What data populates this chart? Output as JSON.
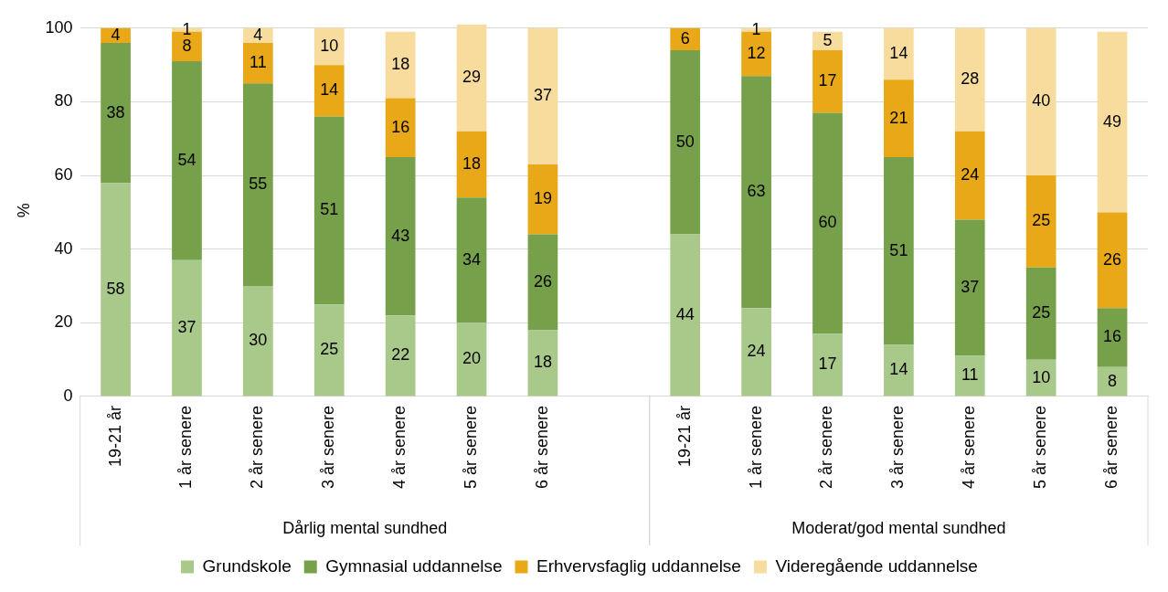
{
  "chart_data": {
    "type": "bar",
    "stacked": true,
    "categories": [
      "19-21 år",
      "1 år senere",
      "2 år senere",
      "3 år senere",
      "4 år senere",
      "5 år senere",
      "6 år senere",
      null,
      "19-21 år",
      "1 år senere",
      "2 år senere",
      "3 år senere",
      "4 år senere",
      "5 år senere",
      "6 år senere"
    ],
    "series": [
      {
        "name": "Grundskole",
        "color": "#a9c98b",
        "values": [
          58,
          37,
          30,
          25,
          22,
          20,
          18,
          null,
          44,
          24,
          17,
          14,
          11,
          10,
          8
        ]
      },
      {
        "name": "Gymnasial uddannelse",
        "color": "#76a04a",
        "values": [
          38,
          54,
          55,
          51,
          43,
          34,
          26,
          null,
          50,
          63,
          60,
          51,
          37,
          25,
          16
        ]
      },
      {
        "name": "Erhvervsfaglig uddannelse",
        "color": "#e8a817",
        "values": [
          4,
          8,
          11,
          14,
          16,
          18,
          19,
          null,
          6,
          12,
          17,
          21,
          24,
          25,
          26
        ]
      },
      {
        "name": "Videregående uddannelse",
        "color": "#f8dc9e",
        "values": [
          null,
          1,
          4,
          10,
          18,
          29,
          37,
          null,
          null,
          1,
          5,
          14,
          28,
          40,
          49
        ]
      }
    ],
    "ylabel": "%",
    "ylim": [
      0,
      101
    ],
    "yticks": [
      0,
      20,
      40,
      60,
      80,
      100
    ],
    "grid": "y",
    "legend": "bottom",
    "data_labels": true,
    "annotations": [
      "Dårlig mental sundhed",
      "Moderat/god mental sundhed"
    ]
  }
}
